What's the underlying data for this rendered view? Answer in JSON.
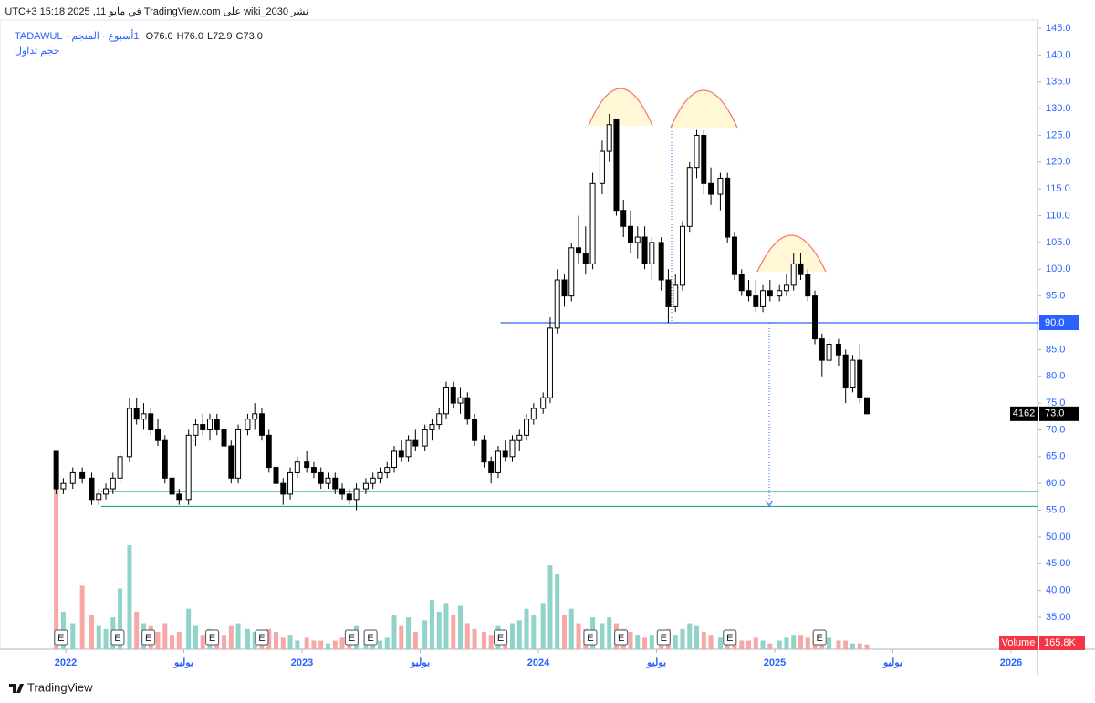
{
  "header": {
    "published": "نشر wiki_2030 على TradingView.com في مايو 11, 2025 15:18 UTC+3",
    "symbol": "1أسبوع · المنجم · TADAWUL",
    "ohlc": [
      "O76.0",
      "H76.0",
      "L72.9",
      "C73.0"
    ],
    "indicator": "حجم تداول"
  },
  "footer": {
    "logo": "TradingView"
  },
  "chart_data": {
    "type": "candlestick",
    "xlim": [
      2021.722,
      2026.112
    ],
    "xticks": [
      2022,
      {
        "value": 2022.5,
        "label": "يوليو"
      },
      2023,
      {
        "value": 2023.5,
        "label": "يوليو"
      },
      2024,
      {
        "value": 2024.5,
        "label": "يوليو"
      },
      2025,
      {
        "value": 2025.5,
        "label": "يوليو"
      },
      2026
    ],
    "ylim": [
      35,
      145
    ],
    "yticks": [
      {
        "value": 35,
        "label": "35.00"
      },
      {
        "value": 40,
        "label": "40.00"
      },
      {
        "value": 45,
        "label": "45.00"
      },
      {
        "value": 50,
        "label": "50.00"
      },
      {
        "value": 55,
        "label": "55.0"
      },
      {
        "value": 60,
        "label": "60.0"
      },
      {
        "value": 65,
        "label": "65.0"
      },
      {
        "value": 70,
        "label": "70.0"
      },
      {
        "value": 75,
        "label": "75.0"
      },
      {
        "value": 80,
        "label": "80.0"
      },
      {
        "value": 85,
        "label": "85.0"
      },
      {
        "value": 90,
        "label": "90.0"
      },
      {
        "value": 95,
        "label": "95.0"
      },
      {
        "value": 100,
        "label": "100.0"
      },
      {
        "value": 105,
        "label": "105.0"
      },
      {
        "value": 110,
        "label": "110.0"
      },
      {
        "value": 115,
        "label": "115.0"
      },
      {
        "value": 120,
        "label": "120.0"
      },
      {
        "value": 125,
        "label": "125.0"
      },
      {
        "value": 130,
        "label": "130.0"
      },
      {
        "value": 135,
        "label": "135.0"
      },
      {
        "value": 140,
        "label": "140.0"
      },
      {
        "value": 145,
        "label": "145.0"
      }
    ],
    "up_color": "#ffffff",
    "down_color": "#000000",
    "wick_color": "#000000",
    "x": [
      2021.96,
      2021.99,
      2022.03,
      2022.07,
      2022.11,
      2022.14,
      2022.17,
      2022.2,
      2022.23,
      2022.27,
      2022.3,
      2022.33,
      2022.36,
      2022.39,
      2022.42,
      2022.45,
      2022.48,
      2022.52,
      2022.55,
      2022.58,
      2022.61,
      2022.64,
      2022.67,
      2022.7,
      2022.73,
      2022.77,
      2022.8,
      2022.83,
      2022.86,
      2022.89,
      2022.92,
      2022.95,
      2022.98,
      2023.02,
      2023.05,
      2023.08,
      2023.11,
      2023.14,
      2023.17,
      2023.2,
      2023.23,
      2023.27,
      2023.3,
      2023.33,
      2023.36,
      2023.39,
      2023.42,
      2023.45,
      2023.48,
      2023.52,
      2023.55,
      2023.58,
      2023.61,
      2023.64,
      2023.67,
      2023.7,
      2023.73,
      2023.77,
      2023.8,
      2023.83,
      2023.86,
      2023.89,
      2023.92,
      2023.95,
      2023.98,
      2024.02,
      2024.05,
      2024.08,
      2024.11,
      2024.14,
      2024.17,
      2024.2,
      2024.23,
      2024.27,
      2024.3,
      2024.33,
      2024.36,
      2024.39,
      2024.42,
      2024.45,
      2024.48,
      2024.52,
      2024.55,
      2024.58,
      2024.61,
      2024.64,
      2024.67,
      2024.7,
      2024.73,
      2024.77,
      2024.8,
      2024.83,
      2024.86,
      2024.89,
      2024.92,
      2024.95,
      2024.98,
      2025.02,
      2025.05,
      2025.08,
      2025.11,
      2025.14,
      2025.17,
      2025.2,
      2025.23,
      2025.27,
      2025.3,
      2025.33,
      2025.36,
      2025.39
    ],
    "ohlc": [
      [
        66,
        66,
        58,
        59
      ],
      [
        59,
        61,
        58,
        60
      ],
      [
        60,
        63,
        59,
        62
      ],
      [
        62,
        63,
        60,
        61
      ],
      [
        61,
        62,
        56,
        57
      ],
      [
        57,
        59,
        56,
        58
      ],
      [
        58,
        60,
        57,
        59
      ],
      [
        59,
        62,
        58,
        61
      ],
      [
        61,
        66,
        60,
        65
      ],
      [
        65,
        76,
        64,
        74
      ],
      [
        74,
        76,
        71,
        72
      ],
      [
        72,
        75,
        70,
        73
      ],
      [
        73,
        74,
        69,
        70
      ],
      [
        70,
        72,
        67,
        68
      ],
      [
        68,
        69,
        60,
        61
      ],
      [
        61,
        62,
        57,
        58
      ],
      [
        58,
        59,
        56,
        57
      ],
      [
        57,
        70,
        56,
        69
      ],
      [
        69,
        72,
        67,
        71
      ],
      [
        71,
        73,
        69,
        70
      ],
      [
        70,
        73,
        68,
        72
      ],
      [
        72,
        73,
        69,
        70
      ],
      [
        70,
        71,
        66,
        67
      ],
      [
        67,
        68,
        60,
        61
      ],
      [
        61,
        71,
        60,
        70
      ],
      [
        70,
        73,
        69,
        72
      ],
      [
        72,
        75,
        70,
        73
      ],
      [
        73,
        74,
        68,
        69
      ],
      [
        69,
        70,
        62,
        63
      ],
      [
        63,
        64,
        59,
        60
      ],
      [
        60,
        61,
        56,
        58
      ],
      [
        58,
        63,
        57,
        62
      ],
      [
        62,
        65,
        61,
        64
      ],
      [
        64,
        66,
        62,
        63
      ],
      [
        63,
        64,
        61,
        62
      ],
      [
        62,
        63,
        59,
        60
      ],
      [
        60,
        62,
        59,
        61
      ],
      [
        61,
        62,
        58,
        59
      ],
      [
        59,
        60,
        57,
        58
      ],
      [
        58,
        59,
        56,
        57
      ],
      [
        57,
        60,
        55,
        59
      ],
      [
        59,
        61,
        58,
        60
      ],
      [
        60,
        62,
        59,
        61
      ],
      [
        61,
        63,
        60,
        62
      ],
      [
        62,
        64,
        61,
        63
      ],
      [
        63,
        67,
        62,
        66
      ],
      [
        66,
        68,
        64,
        65
      ],
      [
        65,
        69,
        64,
        68
      ],
      [
        68,
        70,
        66,
        67
      ],
      [
        67,
        71,
        66,
        70
      ],
      [
        70,
        72,
        68,
        71
      ],
      [
        71,
        74,
        70,
        73
      ],
      [
        73,
        79,
        72,
        78
      ],
      [
        78,
        79,
        74,
        75
      ],
      [
        75,
        78,
        73,
        76
      ],
      [
        76,
        77,
        71,
        72
      ],
      [
        72,
        73,
        67,
        68
      ],
      [
        68,
        69,
        63,
        64
      ],
      [
        64,
        65,
        60,
        62
      ],
      [
        62,
        67,
        61,
        66
      ],
      [
        66,
        68,
        64,
        65
      ],
      [
        65,
        69,
        64,
        68
      ],
      [
        68,
        70,
        66,
        69
      ],
      [
        69,
        73,
        68,
        72
      ],
      [
        72,
        75,
        71,
        74
      ],
      [
        74,
        77,
        73,
        76
      ],
      [
        76,
        91,
        75,
        89
      ],
      [
        89,
        100,
        88,
        98
      ],
      [
        98,
        99,
        93,
        95
      ],
      [
        95,
        105,
        94,
        104
      ],
      [
        104,
        110,
        101,
        103
      ],
      [
        103,
        108,
        99,
        101
      ],
      [
        101,
        118,
        100,
        116
      ],
      [
        116,
        124,
        114,
        122
      ],
      [
        122,
        129,
        120,
        127
      ],
      [
        128,
        128,
        110,
        111
      ],
      [
        111,
        113,
        106,
        108
      ],
      [
        108,
        111,
        103,
        105
      ],
      [
        105,
        108,
        102,
        106
      ],
      [
        106,
        108,
        100,
        101
      ],
      [
        101,
        106,
        98,
        105
      ],
      [
        105,
        106,
        96,
        98
      ],
      [
        98,
        100,
        90,
        93
      ],
      [
        93,
        99,
        92,
        97
      ],
      [
        97,
        109,
        96,
        108
      ],
      [
        108,
        120,
        107,
        119
      ],
      [
        119,
        126,
        117,
        125
      ],
      [
        125,
        126,
        114,
        116
      ],
      [
        116,
        119,
        112,
        114
      ],
      [
        114,
        118,
        111,
        117
      ],
      [
        117,
        118,
        105,
        106
      ],
      [
        106,
        107,
        98,
        99
      ],
      [
        99,
        100,
        95,
        96
      ],
      [
        96,
        98,
        94,
        95
      ],
      [
        95,
        98,
        92,
        93
      ],
      [
        93,
        97,
        92,
        96
      ],
      [
        96,
        98,
        94,
        95
      ],
      [
        95,
        97,
        94,
        96
      ],
      [
        96,
        99,
        95,
        97
      ],
      [
        97,
        103,
        96,
        101
      ],
      [
        101,
        103,
        98,
        99
      ],
      [
        99,
        100,
        94,
        95
      ],
      [
        95,
        96,
        86,
        87
      ],
      [
        87,
        88,
        80,
        83
      ],
      [
        83,
        87,
        82,
        86
      ],
      [
        86,
        87,
        82,
        84
      ],
      [
        84,
        85,
        75,
        78
      ],
      [
        78,
        84,
        77,
        83
      ],
      [
        83,
        86,
        75,
        76
      ],
      [
        76,
        76,
        72.9,
        73
      ]
    ],
    "volume": {
      "name": "Volume",
      "last_label": "165.8K",
      "ylim": [
        0,
        6000
      ],
      "up_color": "#8fd3c9",
      "down_color": "#f7a8a6",
      "values": [
        5600,
        1300,
        900,
        2200,
        1200,
        800,
        700,
        1100,
        2100,
        3600,
        1300,
        900,
        800,
        600,
        900,
        500,
        600,
        1400,
        800,
        500,
        700,
        600,
        500,
        800,
        900,
        700,
        600,
        400,
        700,
        600,
        400,
        500,
        300,
        400,
        300,
        300,
        200,
        300,
        400,
        500,
        800,
        500,
        400,
        300,
        400,
        1200,
        800,
        1100,
        600,
        1000,
        1700,
        1300,
        1600,
        1200,
        1500,
        900,
        700,
        600,
        500,
        800,
        500,
        900,
        1000,
        1400,
        1200,
        1600,
        2900,
        2600,
        1200,
        1400,
        900,
        700,
        1100,
        900,
        1100,
        900,
        700,
        600,
        500,
        400,
        500,
        600,
        700,
        500,
        700,
        900,
        800,
        600,
        500,
        400,
        500,
        400,
        300,
        300,
        400,
        300,
        200,
        300,
        400,
        500,
        500,
        400,
        600,
        500,
        400,
        300,
        300,
        200,
        200,
        165.8
      ]
    },
    "last_price": {
      "value": 73,
      "label": "73.0",
      "tag": "4162"
    },
    "hlines": [
      {
        "value": 90,
        "label": "90.0",
        "color": "#2962ff",
        "start": 2023.84
      },
      {
        "value": 58.5,
        "color": "#26a69a",
        "start": 2022.15
      },
      {
        "value": 55.7,
        "color": "#26a69a",
        "start": 2022.15
      }
    ],
    "earnings": {
      "label": "E",
      "x": [
        2021.98,
        2022.22,
        2022.35,
        2022.62,
        2022.83,
        2023.21,
        2023.29,
        2023.84,
        2024.22,
        2024.35,
        2024.53,
        2024.81,
        2025.19
      ]
    }
  }
}
